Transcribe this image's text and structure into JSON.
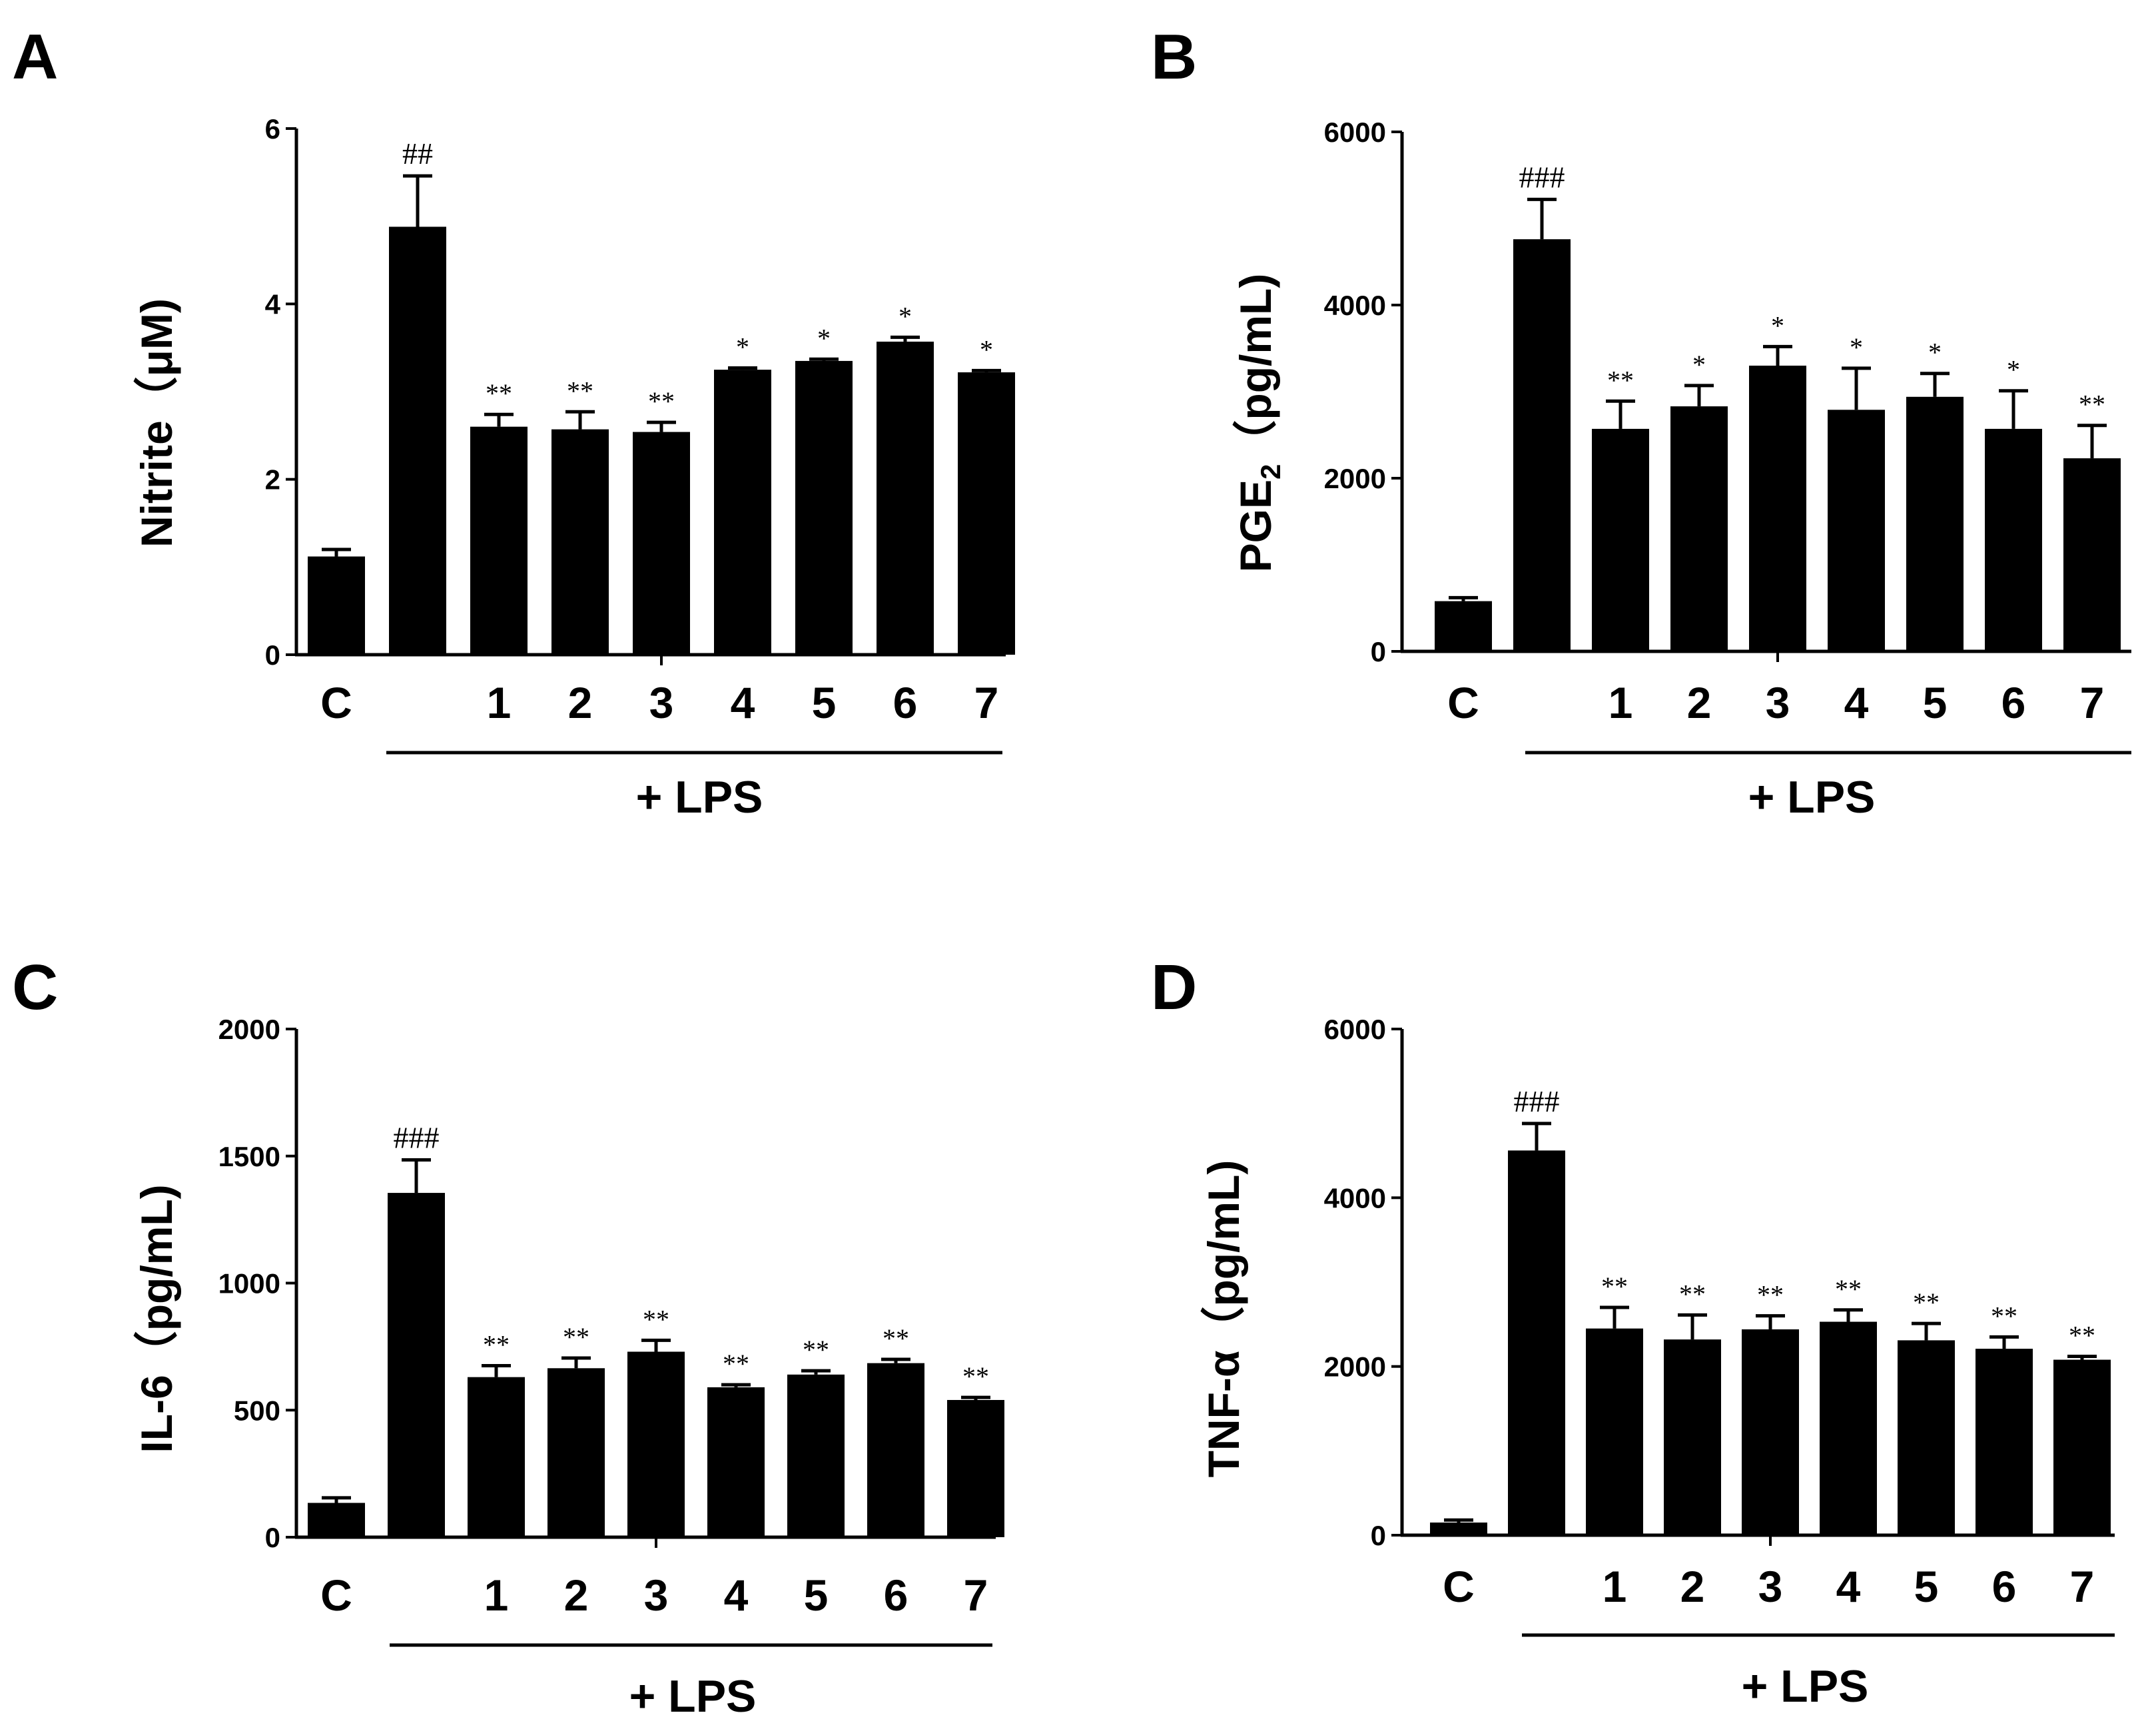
{
  "chart_data": [
    {
      "panel": "A",
      "type": "bar",
      "categories": [
        "C",
        "",
        "1",
        "2",
        "3",
        "4",
        "5",
        "6",
        "7"
      ],
      "values": [
        1.12,
        4.88,
        2.6,
        2.57,
        2.54,
        3.25,
        3.35,
        3.57,
        3.22
      ],
      "errors": [
        0.08,
        0.58,
        0.14,
        0.2,
        0.11,
        0.02,
        0.02,
        0.05,
        0.02
      ],
      "significance": [
        "",
        "##",
        "**",
        "**",
        "**",
        "*",
        "*",
        "*",
        "*"
      ],
      "ylabel": "Nitrite（μM)",
      "ylim": [
        0,
        6
      ],
      "yticks": [
        "0",
        "2",
        "4",
        "6"
      ],
      "group_label": "+ LPS",
      "group_start_index": 1
    },
    {
      "panel": "B",
      "type": "bar",
      "categories": [
        "C",
        "",
        "1",
        "2",
        "3",
        "4",
        "5",
        "6",
        "7"
      ],
      "values": [
        580,
        4760,
        2570,
        2830,
        3300,
        2790,
        2940,
        2570,
        2230
      ],
      "errors": [
        40,
        460,
        320,
        240,
        220,
        480,
        270,
        440,
        380
      ],
      "significance": [
        "",
        "###",
        "**",
        "*",
        "*",
        "*",
        "*",
        "*",
        "**"
      ],
      "ylabel_main": "PGE",
      "ylabel_sub": "2",
      "ylabel_unit": "（pg/mL)",
      "ylim": [
        0,
        6000
      ],
      "yticks": [
        "0",
        "2000",
        "4000",
        "6000"
      ],
      "group_label": "+ LPS",
      "group_start_index": 1
    },
    {
      "panel": "C",
      "type": "bar",
      "categories": [
        "C",
        "",
        "1",
        "2",
        "3",
        "4",
        "5",
        "6",
        "7"
      ],
      "values": [
        135,
        1355,
        630,
        665,
        730,
        590,
        640,
        685,
        540
      ],
      "errors": [
        20,
        130,
        45,
        40,
        45,
        10,
        15,
        15,
        10
      ],
      "significance": [
        "",
        "###",
        "**",
        "**",
        "**",
        "**",
        "**",
        "**",
        "**"
      ],
      "ylabel": "IL-6（pg/mL)",
      "ylim": [
        0,
        2000
      ],
      "yticks": [
        "0",
        "500",
        "1000",
        "1500",
        "2000"
      ],
      "group_label": "+ LPS",
      "group_start_index": 1
    },
    {
      "panel": "D",
      "type": "bar",
      "categories": [
        "C",
        "",
        "1",
        "2",
        "3",
        "4",
        "5",
        "6",
        "7"
      ],
      "values": [
        150,
        4560,
        2450,
        2320,
        2440,
        2530,
        2310,
        2210,
        2080
      ],
      "errors": [
        30,
        320,
        250,
        290,
        160,
        140,
        200,
        140,
        40
      ],
      "significance": [
        "",
        "###",
        "**",
        "**",
        "**",
        "**",
        "**",
        "**",
        "**"
      ],
      "ylabel": "TNF-α（pg/mL)",
      "ylim": [
        0,
        6000
      ],
      "yticks": [
        "0",
        "2000",
        "4000",
        "6000"
      ],
      "group_label": "+ LPS",
      "group_start_index": 1
    }
  ]
}
